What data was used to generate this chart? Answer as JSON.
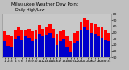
{
  "title": "Milwaukee Weather Dew Point",
  "subtitle": "Daily High/Low",
  "x_labels": [
    "1",
    "2",
    "3",
    "4",
    "5",
    "6",
    "7",
    "8",
    "9",
    "10",
    "11",
    "12",
    "13",
    "14",
    "15",
    "16",
    "17",
    "18",
    "19",
    "20",
    "21",
    "22",
    "23",
    "24",
    "25",
    "26",
    "27",
    "28",
    "29",
    "30",
    "31"
  ],
  "high_values": [
    52,
    46,
    44,
    55,
    58,
    54,
    54,
    56,
    52,
    54,
    62,
    56,
    58,
    64,
    56,
    48,
    52,
    54,
    44,
    36,
    50,
    52,
    68,
    74,
    70,
    66,
    64,
    60,
    58,
    54,
    50
  ],
  "low_values": [
    36,
    28,
    26,
    40,
    44,
    38,
    44,
    42,
    36,
    40,
    48,
    44,
    46,
    50,
    42,
    30,
    36,
    40,
    26,
    18,
    34,
    36,
    54,
    58,
    54,
    50,
    48,
    44,
    42,
    38,
    36
  ],
  "high_color": "#ff0000",
  "low_color": "#0000cc",
  "bg_color": "#c0c0c0",
  "plot_bg": "#c8c8c8",
  "ylim_min": 10,
  "ylim_max": 80,
  "yticks": [
    10,
    20,
    30,
    40,
    50,
    60,
    70,
    80
  ],
  "bar_width": 0.38,
  "title_fontsize": 4.0,
  "tick_fontsize": 3.2
}
